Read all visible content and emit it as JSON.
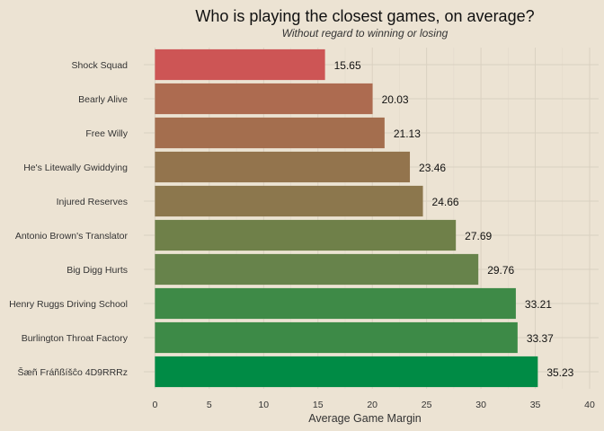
{
  "chart_data": {
    "type": "bar",
    "orientation": "horizontal",
    "title": "Who is playing the closest games, on average?",
    "subtitle": "Without regard to winning or losing",
    "xlabel": "Average Game Margin",
    "ylabel": "",
    "xlim": [
      0,
      40
    ],
    "xticks": [
      0,
      5,
      10,
      15,
      20,
      25,
      30,
      35,
      40
    ],
    "grid": true,
    "legend": "none",
    "categories": [
      "Shock Squad",
      "Bearly Alive",
      "Free Willy",
      "He's Litewally Gwiddying",
      "Injured Reserves",
      "Antonio Brown's Translator",
      "Big Digg Hurts",
      "Henry Ruggs Driving School",
      "Burlington Throat Factory",
      "Šæñ Fráñßíšĉo 4D9RRRz"
    ],
    "values": [
      15.65,
      20.03,
      21.13,
      23.46,
      24.66,
      27.69,
      29.76,
      33.21,
      33.37,
      35.23
    ],
    "value_labels": [
      "15.65",
      "20.03",
      "21.13",
      "23.46",
      "24.66",
      "27.69",
      "29.76",
      "33.21",
      "33.37",
      "35.23"
    ],
    "colors": [
      "#cd5555",
      "#ad6b50",
      "#a46e4e",
      "#93744d",
      "#8c774d",
      "#6f8049",
      "#67834b",
      "#3e8a47",
      "#3d8a47",
      "#008b45"
    ],
    "background": "#ece3d3"
  }
}
